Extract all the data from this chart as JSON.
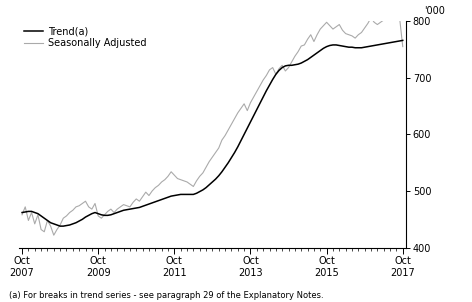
{
  "ylabel": "'000",
  "footnote": "(a) For breaks in trend series - see paragraph 29 of the Explanatory Notes.",
  "legend": [
    "Trend(a)",
    "Seasonally Adjusted"
  ],
  "trend_color": "#000000",
  "seasonal_color": "#aaaaaa",
  "ylim": [
    400,
    800
  ],
  "yticks": [
    400,
    500,
    600,
    700,
    800
  ],
  "xtick_labels": [
    "Oct\n2007",
    "Oct\n2009",
    "Oct\n2011",
    "Oct\n2013",
    "Oct\n2015",
    "Oct\n2017"
  ],
  "xtick_positions": [
    0,
    24,
    48,
    72,
    96,
    120
  ],
  "minor_xtick_positions": [
    2,
    4,
    6,
    8,
    10,
    12,
    14,
    16,
    18,
    20,
    22,
    26,
    28,
    30,
    32,
    34,
    36,
    38,
    40,
    42,
    44,
    46,
    50,
    52,
    54,
    56,
    58,
    60,
    62,
    64,
    66,
    68,
    70,
    74,
    76,
    78,
    80,
    82,
    84,
    86,
    88,
    90,
    92,
    94,
    98,
    100,
    102,
    104,
    106,
    108,
    110,
    112,
    114,
    116,
    118
  ],
  "trend_data": [
    462,
    463,
    464,
    464,
    462,
    460,
    456,
    452,
    448,
    444,
    442,
    440,
    438,
    438,
    439,
    440,
    442,
    444,
    447,
    450,
    454,
    457,
    460,
    462,
    460,
    458,
    457,
    457,
    458,
    460,
    462,
    464,
    466,
    467,
    468,
    469,
    470,
    471,
    473,
    475,
    477,
    479,
    481,
    483,
    485,
    487,
    489,
    491,
    492,
    493,
    494,
    494,
    494,
    494,
    494,
    496,
    499,
    502,
    506,
    511,
    516,
    521,
    527,
    534,
    542,
    550,
    559,
    568,
    578,
    589,
    600,
    611,
    622,
    633,
    644,
    655,
    666,
    677,
    687,
    697,
    706,
    713,
    718,
    721,
    722,
    722,
    723,
    724,
    726,
    729,
    732,
    736,
    740,
    744,
    748,
    752,
    755,
    757,
    758,
    758,
    757,
    756,
    755,
    754,
    754,
    753,
    753,
    753,
    754,
    755,
    756,
    757,
    758,
    759,
    760,
    761,
    762,
    763,
    764,
    765,
    766
  ],
  "seasonal_data": [
    458,
    472,
    448,
    462,
    442,
    458,
    432,
    428,
    448,
    438,
    422,
    432,
    440,
    452,
    456,
    462,
    466,
    472,
    474,
    478,
    482,
    472,
    468,
    478,
    456,
    452,
    458,
    464,
    468,
    462,
    468,
    472,
    476,
    474,
    472,
    480,
    486,
    482,
    490,
    498,
    492,
    500,
    506,
    510,
    516,
    520,
    526,
    534,
    528,
    522,
    520,
    518,
    516,
    512,
    508,
    518,
    526,
    532,
    542,
    552,
    560,
    568,
    576,
    590,
    598,
    608,
    618,
    628,
    638,
    646,
    654,
    642,
    656,
    666,
    676,
    686,
    696,
    704,
    714,
    718,
    706,
    716,
    722,
    712,
    718,
    728,
    738,
    746,
    756,
    758,
    768,
    776,
    764,
    776,
    786,
    792,
    798,
    792,
    786,
    790,
    794,
    784,
    778,
    776,
    774,
    770,
    776,
    780,
    788,
    796,
    806,
    798,
    794,
    798,
    802,
    808,
    812,
    808,
    804,
    806,
    755
  ]
}
